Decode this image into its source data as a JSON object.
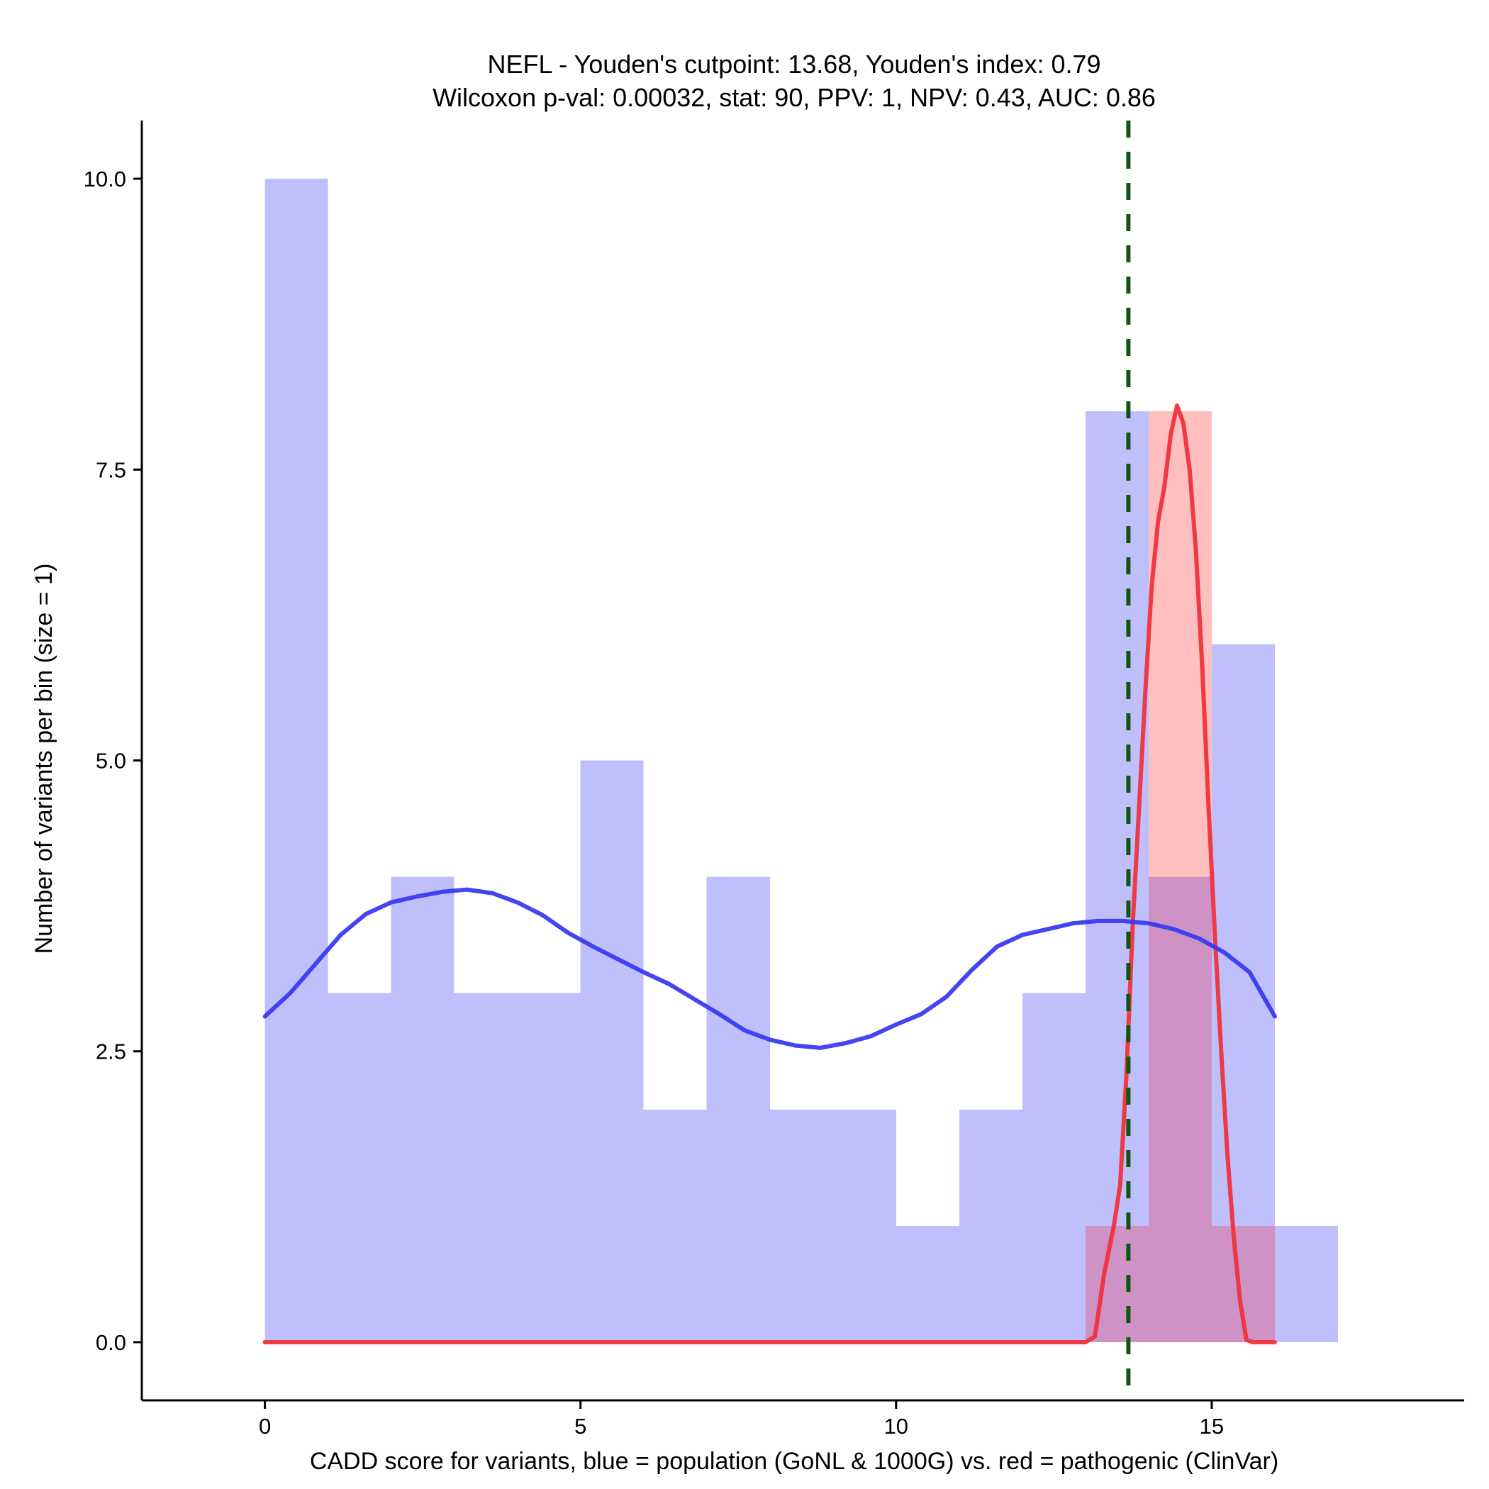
{
  "chart_data": {
    "type": "histogram",
    "title_line1": "NEFL - Youden's cutpoint: 13.68, Youden's index: 0.79",
    "title_line2": "Wilcoxon p-val: 0.00032, stat: 90, PPV: 1, NPV: 0.43, AUC: 0.86",
    "xlabel": "CADD score for variants, blue = population (GoNL & 1000G) vs. red = pathogenic (ClinVar)",
    "ylabel": "Number of variants per bin (size = 1)",
    "xlim": [
      -1.95,
      19
    ],
    "ylim": [
      -0.5,
      10.5
    ],
    "x_ticks": [
      {
        "value": 0,
        "label": "0"
      },
      {
        "value": 5,
        "label": "5"
      },
      {
        "value": 10,
        "label": "10"
      },
      {
        "value": 15,
        "label": "15"
      }
    ],
    "y_ticks": [
      {
        "value": 0,
        "label": "0.0"
      },
      {
        "value": 2.5,
        "label": "2.5"
      },
      {
        "value": 5,
        "label": "5.0"
      },
      {
        "value": 7.5,
        "label": "7.5"
      },
      {
        "value": 10,
        "label": "10.0"
      }
    ],
    "cutpoint": 13.68,
    "colors": {
      "population": "#bfbffc",
      "pathogenic": "#ffbfbf",
      "overlap": "#cf92c5",
      "population_line": "#3a3af0",
      "pathogenic_line": "#f0323c",
      "cutpoint": "#0f560f"
    },
    "series": [
      {
        "name": "population (GoNL & 1000G)",
        "bins": [
          {
            "x0": 0,
            "x1": 1,
            "count": 10
          },
          {
            "x0": 1,
            "x1": 2,
            "count": 3
          },
          {
            "x0": 2,
            "x1": 3,
            "count": 4
          },
          {
            "x0": 3,
            "x1": 4,
            "count": 3
          },
          {
            "x0": 4,
            "x1": 5,
            "count": 3
          },
          {
            "x0": 5,
            "x1": 6,
            "count": 5
          },
          {
            "x0": 6,
            "x1": 7,
            "count": 2
          },
          {
            "x0": 7,
            "x1": 8,
            "count": 4
          },
          {
            "x0": 8,
            "x1": 9,
            "count": 2
          },
          {
            "x0": 9,
            "x1": 10,
            "count": 2
          },
          {
            "x0": 10,
            "x1": 11,
            "count": 1
          },
          {
            "x0": 11,
            "x1": 12,
            "count": 2
          },
          {
            "x0": 12,
            "x1": 13,
            "count": 3
          },
          {
            "x0": 13,
            "x1": 14,
            "count": 8
          },
          {
            "x0": 14,
            "x1": 15,
            "count": 4
          },
          {
            "x0": 15,
            "x1": 16,
            "count": 6
          },
          {
            "x0": 16,
            "x1": 17,
            "count": 1
          }
        ],
        "density_curve": [
          [
            0,
            2.8
          ],
          [
            0.4,
            3.0
          ],
          [
            0.8,
            3.25
          ],
          [
            1.2,
            3.5
          ],
          [
            1.6,
            3.68
          ],
          [
            2.0,
            3.78
          ],
          [
            2.4,
            3.83
          ],
          [
            2.8,
            3.87
          ],
          [
            3.2,
            3.89
          ],
          [
            3.6,
            3.86
          ],
          [
            4.0,
            3.78
          ],
          [
            4.4,
            3.67
          ],
          [
            4.8,
            3.52
          ],
          [
            5.2,
            3.4
          ],
          [
            5.6,
            3.29
          ],
          [
            6.0,
            3.18
          ],
          [
            6.4,
            3.08
          ],
          [
            6.8,
            2.95
          ],
          [
            7.2,
            2.82
          ],
          [
            7.6,
            2.68
          ],
          [
            8.0,
            2.6
          ],
          [
            8.4,
            2.55
          ],
          [
            8.8,
            2.53
          ],
          [
            9.2,
            2.57
          ],
          [
            9.6,
            2.63
          ],
          [
            10.0,
            2.73
          ],
          [
            10.4,
            2.82
          ],
          [
            10.8,
            2.97
          ],
          [
            11.2,
            3.2
          ],
          [
            11.6,
            3.4
          ],
          [
            12.0,
            3.5
          ],
          [
            12.4,
            3.55
          ],
          [
            12.8,
            3.6
          ],
          [
            13.2,
            3.62
          ],
          [
            13.6,
            3.62
          ],
          [
            14.0,
            3.6
          ],
          [
            14.4,
            3.55
          ],
          [
            14.8,
            3.47
          ],
          [
            15.2,
            3.35
          ],
          [
            15.6,
            3.18
          ],
          [
            16.0,
            2.8
          ]
        ]
      },
      {
        "name": "pathogenic (ClinVar)",
        "bins": [
          {
            "x0": 13,
            "x1": 14,
            "count": 1
          },
          {
            "x0": 14,
            "x1": 15,
            "count": 8
          },
          {
            "x0": 15,
            "x1": 16,
            "count": 1
          }
        ],
        "density_curve": [
          [
            0,
            0
          ],
          [
            13.0,
            0
          ],
          [
            13.15,
            0.05
          ],
          [
            13.3,
            0.6
          ],
          [
            13.45,
            1.0
          ],
          [
            13.55,
            1.35
          ],
          [
            13.65,
            2.3
          ],
          [
            13.75,
            3.6
          ],
          [
            13.85,
            4.6
          ],
          [
            13.95,
            5.6
          ],
          [
            14.05,
            6.5
          ],
          [
            14.15,
            7.05
          ],
          [
            14.25,
            7.35
          ],
          [
            14.35,
            7.8
          ],
          [
            14.45,
            8.05
          ],
          [
            14.55,
            7.9
          ],
          [
            14.65,
            7.5
          ],
          [
            14.75,
            6.8
          ],
          [
            14.85,
            5.8
          ],
          [
            14.95,
            4.6
          ],
          [
            15.05,
            3.5
          ],
          [
            15.15,
            2.5
          ],
          [
            15.25,
            1.6
          ],
          [
            15.35,
            0.9
          ],
          [
            15.45,
            0.35
          ],
          [
            15.55,
            0.02
          ],
          [
            15.65,
            0
          ],
          [
            16.0,
            0
          ]
        ]
      }
    ]
  }
}
